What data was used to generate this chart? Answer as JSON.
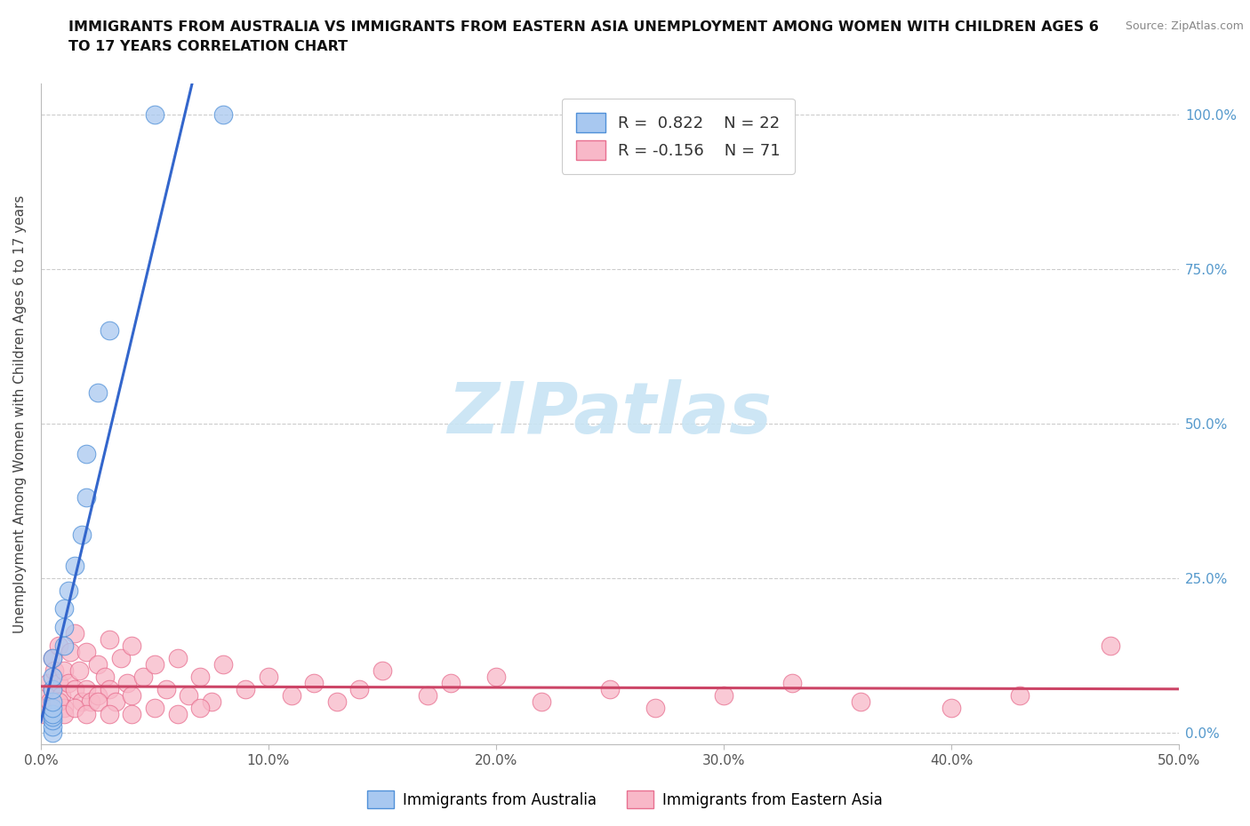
{
  "title_line1": "IMMIGRANTS FROM AUSTRALIA VS IMMIGRANTS FROM EASTERN ASIA UNEMPLOYMENT AMONG WOMEN WITH CHILDREN AGES 6",
  "title_line2": "TO 17 YEARS CORRELATION CHART",
  "source": "Source: ZipAtlas.com",
  "ylabel": "Unemployment Among Women with Children Ages 6 to 17 years",
  "xlim": [
    0.0,
    0.5
  ],
  "ylim": [
    -0.02,
    1.05
  ],
  "yaxis_ticks": [
    0.0,
    0.25,
    0.5,
    0.75,
    1.0
  ],
  "xaxis_ticks": [
    0.0,
    0.1,
    0.2,
    0.3,
    0.4,
    0.5
  ],
  "legend_blue_R": "0.822",
  "legend_blue_N": "22",
  "legend_pink_R": "-0.156",
  "legend_pink_N": "71",
  "blue_fill": "#a8c8f0",
  "blue_edge": "#5090d8",
  "pink_fill": "#f8b8c8",
  "pink_edge": "#e87090",
  "blue_line": "#3366cc",
  "pink_line": "#cc4466",
  "watermark_color": "#c8e4f4",
  "background": "#ffffff",
  "grid_color": "#cccccc",
  "right_tick_color": "#5599cc",
  "aus_x": [
    0.005,
    0.005,
    0.005,
    0.005,
    0.005,
    0.005,
    0.005,
    0.005,
    0.005,
    0.005,
    0.01,
    0.01,
    0.01,
    0.012,
    0.015,
    0.018,
    0.02,
    0.02,
    0.025,
    0.03,
    0.05,
    0.08
  ],
  "aus_y": [
    0.0,
    0.01,
    0.02,
    0.025,
    0.03,
    0.04,
    0.05,
    0.07,
    0.09,
    0.12,
    0.14,
    0.17,
    0.2,
    0.23,
    0.27,
    0.32,
    0.38,
    0.45,
    0.55,
    0.65,
    1.0,
    1.0
  ],
  "ea_x": [
    0.0,
    0.0,
    0.002,
    0.003,
    0.004,
    0.005,
    0.005,
    0.006,
    0.007,
    0.008,
    0.008,
    0.009,
    0.01,
    0.01,
    0.012,
    0.013,
    0.015,
    0.015,
    0.017,
    0.018,
    0.02,
    0.02,
    0.022,
    0.025,
    0.025,
    0.028,
    0.03,
    0.03,
    0.033,
    0.035,
    0.038,
    0.04,
    0.04,
    0.045,
    0.05,
    0.055,
    0.06,
    0.065,
    0.07,
    0.075,
    0.08,
    0.09,
    0.1,
    0.11,
    0.12,
    0.13,
    0.14,
    0.15,
    0.17,
    0.18,
    0.2,
    0.22,
    0.25,
    0.27,
    0.3,
    0.33,
    0.36,
    0.4,
    0.43,
    0.47,
    0.005,
    0.008,
    0.01,
    0.015,
    0.02,
    0.025,
    0.03,
    0.04,
    0.05,
    0.06,
    0.07
  ],
  "ea_y": [
    0.03,
    0.06,
    0.04,
    0.08,
    0.05,
    0.12,
    0.07,
    0.1,
    0.05,
    0.08,
    0.14,
    0.06,
    0.1,
    0.04,
    0.08,
    0.13,
    0.16,
    0.07,
    0.1,
    0.05,
    0.13,
    0.07,
    0.05,
    0.11,
    0.06,
    0.09,
    0.15,
    0.07,
    0.05,
    0.12,
    0.08,
    0.14,
    0.06,
    0.09,
    0.11,
    0.07,
    0.12,
    0.06,
    0.09,
    0.05,
    0.11,
    0.07,
    0.09,
    0.06,
    0.08,
    0.05,
    0.07,
    0.1,
    0.06,
    0.08,
    0.09,
    0.05,
    0.07,
    0.04,
    0.06,
    0.08,
    0.05,
    0.04,
    0.06,
    0.14,
    0.03,
    0.05,
    0.03,
    0.04,
    0.03,
    0.05,
    0.03,
    0.03,
    0.04,
    0.03,
    0.04
  ]
}
